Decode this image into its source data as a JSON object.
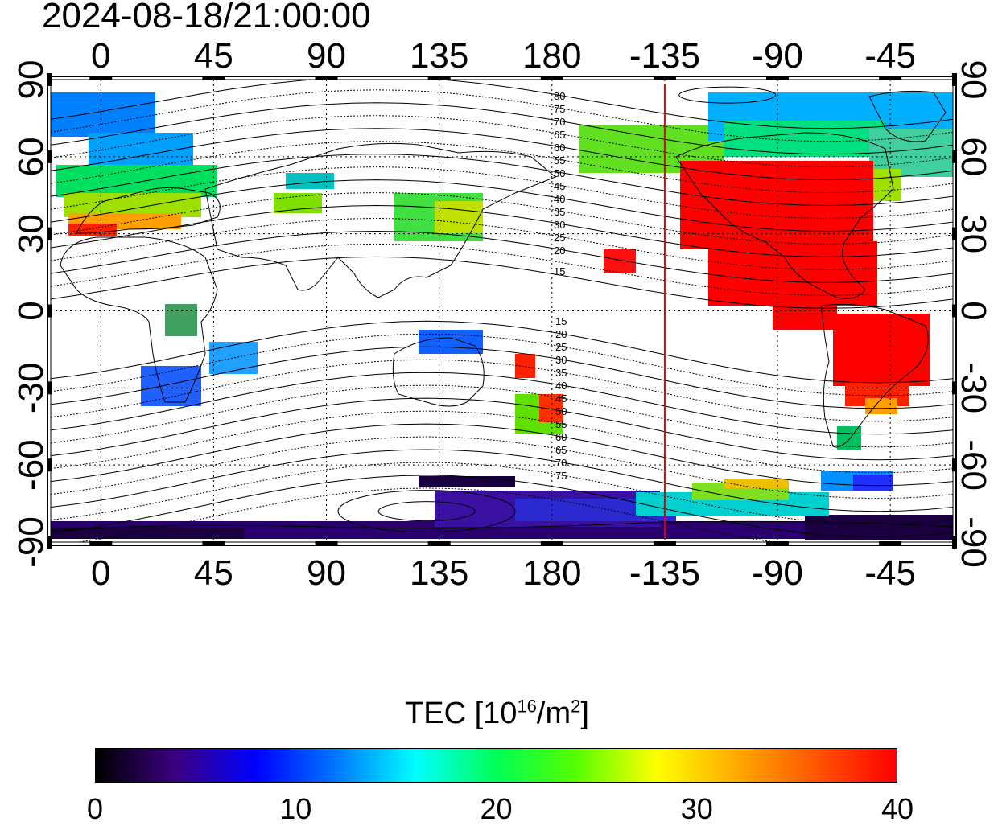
{
  "title": "2024-08-18/21:00:00",
  "x_ticks_top": [
    "0",
    "45",
    "90",
    "135",
    "180",
    "-135",
    "-90",
    "-45"
  ],
  "x_ticks_bottom": [
    "0",
    "45",
    "90",
    "135",
    "180",
    "-135",
    "-90",
    "-45"
  ],
  "y_ticks_left": [
    "90",
    "60",
    "30",
    "0",
    "-30",
    "-60",
    "-90"
  ],
  "y_ticks_right": [
    "90",
    "60",
    "30",
    "0",
    "-30",
    "-60",
    "-90"
  ],
  "contour_labels_north": [
    "80",
    "75",
    "70",
    "65",
    "60",
    "55",
    "50",
    "45",
    "40",
    "35",
    "30",
    "25",
    "20",
    "15"
  ],
  "contour_labels_south": [
    "15",
    "20",
    "25",
    "30",
    "35",
    "40",
    "45",
    "50",
    "55",
    "60",
    "65",
    "70",
    "75"
  ],
  "colorbar": {
    "title_prefix": "TEC  [10",
    "title_exp1": "16",
    "title_mid": "/m",
    "title_exp2": "2",
    "title_suffix": "]",
    "labels": [
      "0",
      "10",
      "20",
      "30",
      "40"
    ],
    "min": 0,
    "max": 40,
    "colors": [
      "#000000",
      "#3a0080",
      "#0000ff",
      "#0077ff",
      "#00ffff",
      "#00ff55",
      "#55ff00",
      "#ffff00",
      "#ffaa00",
      "#ff5500",
      "#ff0000"
    ]
  },
  "map": {
    "projection": "cylindrical",
    "lon_range": [
      -20,
      340
    ],
    "lat_range": [
      -90,
      90
    ],
    "terminator_longitude": -135,
    "terminator_color": "#e00000"
  }
}
